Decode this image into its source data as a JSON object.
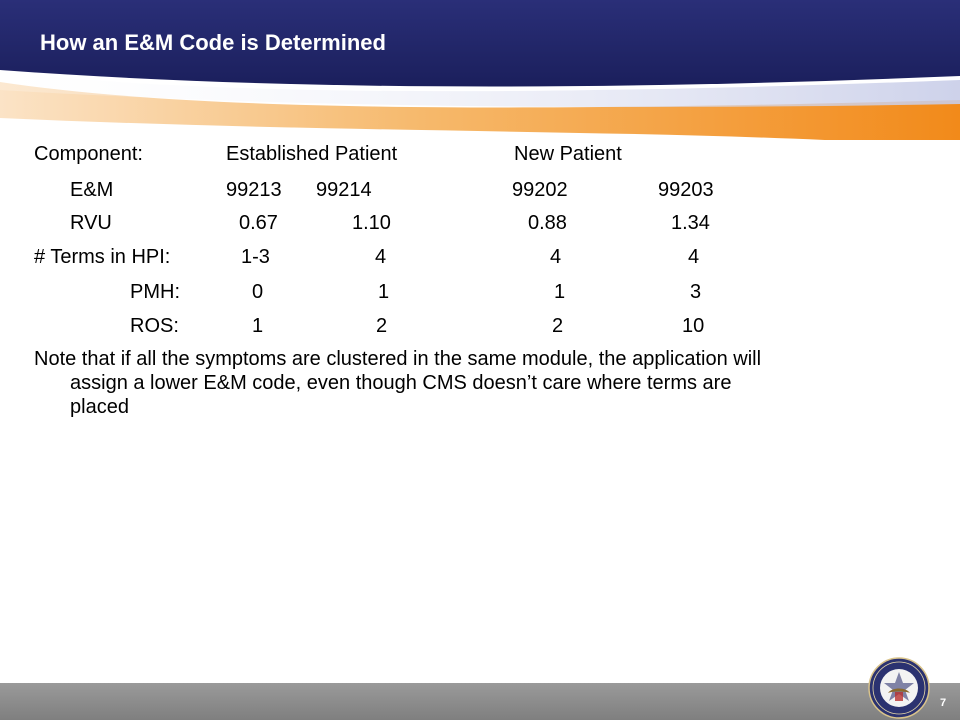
{
  "slide": {
    "title": "How an E&M Code is Determined",
    "page_number": "7"
  },
  "table": {
    "header": {
      "component": "Component:",
      "established": "Established Patient",
      "new": "New Patient"
    },
    "rows": [
      {
        "label": "E&M",
        "values": [
          "99213",
          "99214",
          "99202",
          "99203"
        ]
      },
      {
        "label": "RVU",
        "values": [
          "0.67",
          "1.10",
          "0.88",
          "1.34"
        ]
      },
      {
        "label": "# Terms in HPI:",
        "values": [
          "1-3",
          "4",
          "4",
          "4"
        ]
      },
      {
        "label": "PMH:",
        "values": [
          "0",
          "1",
          "1",
          "3"
        ]
      },
      {
        "label": "ROS:",
        "values": [
          "1",
          "2",
          "2",
          "10"
        ]
      }
    ]
  },
  "note": {
    "line1": "Note that if all the symptoms are clustered in the same module, the application will",
    "line2": "assign a lower E&M code, even though CMS doesn’t care where terms are",
    "line3": "placed"
  },
  "colors": {
    "navy": "#1f2466",
    "orange": "#f28c1e",
    "footer_gray": "#8c8c8c"
  },
  "icons": {
    "seal": "department-of-defense-seal-icon"
  }
}
